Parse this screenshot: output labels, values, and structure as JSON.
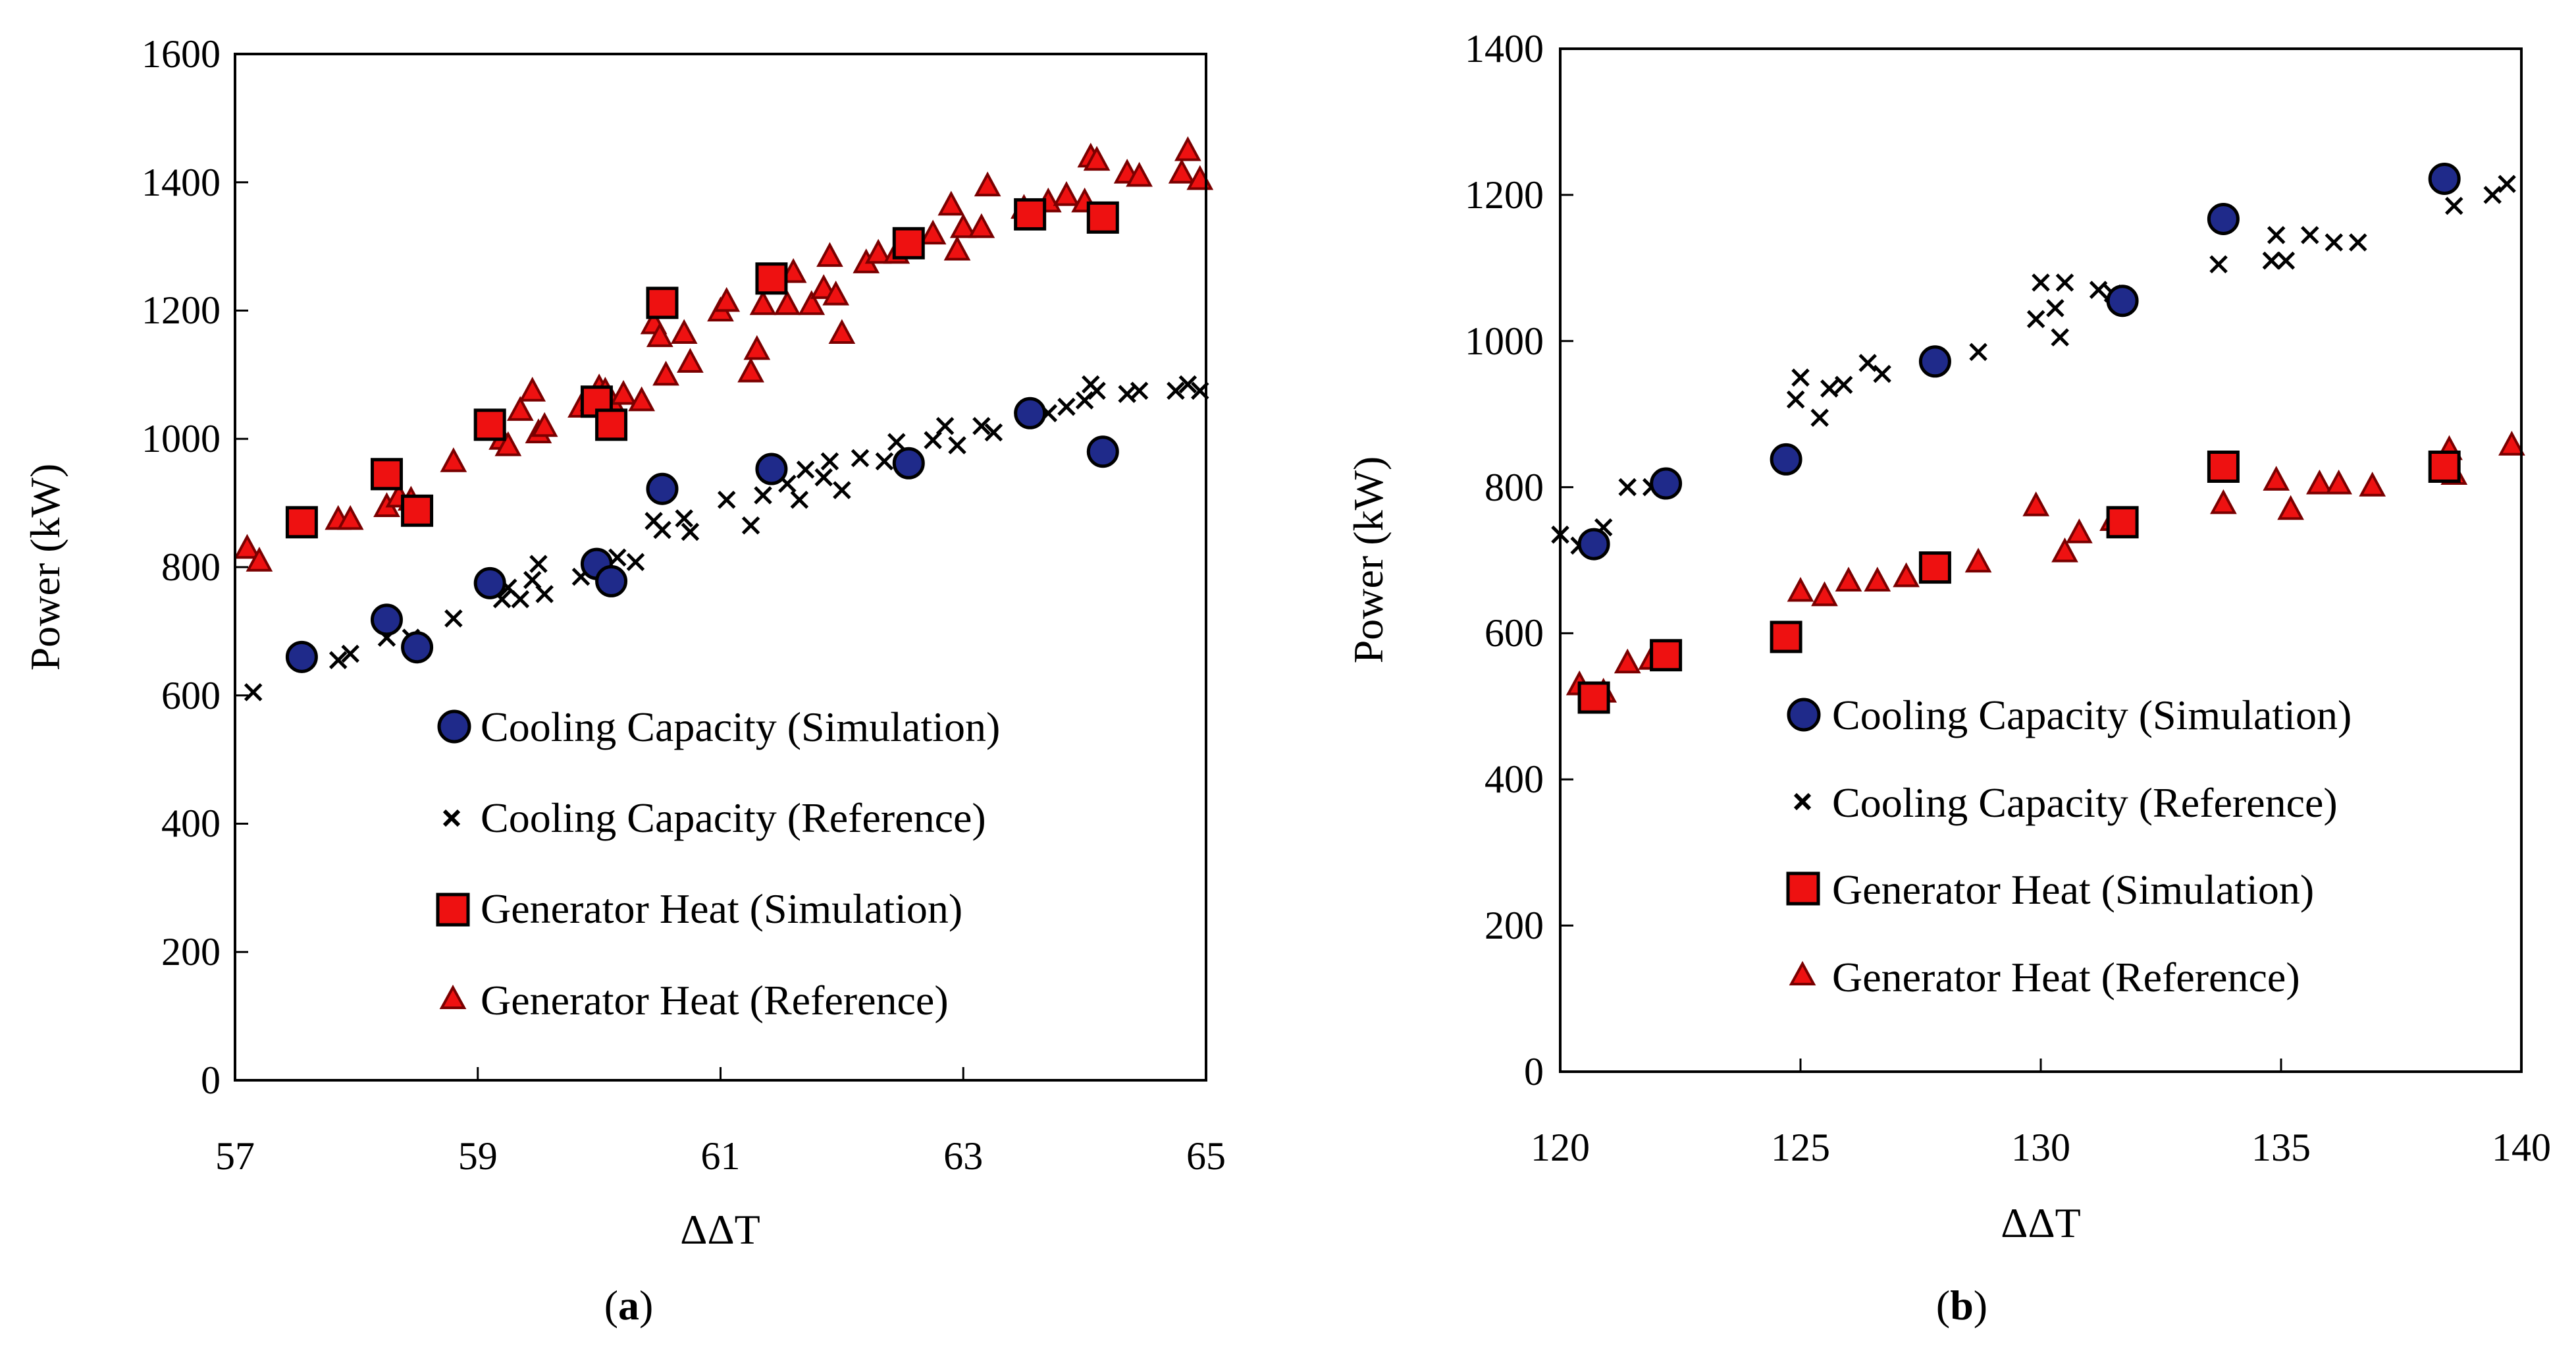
{
  "colors": {
    "cooling_sim_fill": "#1f2a8a",
    "cooling_sim_edge": "#000000",
    "cooling_ref": "#000000",
    "generator_sim_fill": "#ee1111",
    "generator_sim_edge": "#000000",
    "generator_ref_fill": "#ee1111",
    "generator_ref_edge": "#7a0000"
  },
  "chart_data": [
    {
      "type": "scatter",
      "panel_label": "a",
      "xlabel": "ΔΔT",
      "ylabel": "Power (kW)",
      "xlim": [
        57,
        65
      ],
      "ylim": [
        0,
        1600
      ],
      "xticks": [
        57,
        59,
        61,
        63,
        65
      ],
      "yticks": [
        0,
        200,
        400,
        600,
        800,
        1000,
        1200,
        1400,
        1600
      ],
      "grid": false,
      "legend_position": "bottom-right",
      "series": [
        {
          "name": "Cooling Capacity (Simulation)",
          "marker": "circle",
          "points": [
            [
              57.55,
              660
            ],
            [
              58.25,
              718
            ],
            [
              58.5,
              675
            ],
            [
              59.1,
              775
            ],
            [
              59.98,
              805
            ],
            [
              60.1,
              778
            ],
            [
              60.52,
              922
            ],
            [
              61.42,
              953
            ],
            [
              62.55,
              962
            ],
            [
              63.55,
              1040
            ],
            [
              64.15,
              980
            ]
          ]
        },
        {
          "name": "Cooling Capacity (Reference)",
          "marker": "x",
          "points": [
            [
              57.15,
              605
            ],
            [
              57.85,
              655
            ],
            [
              57.95,
              665
            ],
            [
              58.25,
              690
            ],
            [
              58.45,
              690
            ],
            [
              58.8,
              720
            ],
            [
              59.2,
              750
            ],
            [
              59.25,
              768
            ],
            [
              59.35,
              750
            ],
            [
              59.45,
              780
            ],
            [
              59.5,
              805
            ],
            [
              59.55,
              758
            ],
            [
              59.85,
              785
            ],
            [
              59.95,
              805
            ],
            [
              60.05,
              790
            ],
            [
              60.15,
              815
            ],
            [
              60.3,
              808
            ],
            [
              60.45,
              872
            ],
            [
              60.52,
              858
            ],
            [
              60.7,
              876
            ],
            [
              60.75,
              855
            ],
            [
              61.05,
              905
            ],
            [
              61.25,
              865
            ],
            [
              61.35,
              912
            ],
            [
              61.55,
              930
            ],
            [
              61.65,
              905
            ],
            [
              61.7,
              952
            ],
            [
              61.85,
              940
            ],
            [
              61.9,
              965
            ],
            [
              62.0,
              920
            ],
            [
              62.15,
              970
            ],
            [
              62.35,
              965
            ],
            [
              62.45,
              995
            ],
            [
              62.55,
              968
            ],
            [
              62.75,
              998
            ],
            [
              62.85,
              1020
            ],
            [
              62.95,
              990
            ],
            [
              63.15,
              1020
            ],
            [
              63.25,
              1010
            ],
            [
              63.55,
              1035
            ],
            [
              63.7,
              1040
            ],
            [
              63.85,
              1050
            ],
            [
              64.0,
              1060
            ],
            [
              64.05,
              1085
            ],
            [
              64.1,
              1075
            ],
            [
              64.35,
              1070
            ],
            [
              64.45,
              1075
            ],
            [
              64.75,
              1075
            ],
            [
              64.85,
              1085
            ],
            [
              64.95,
              1075
            ]
          ]
        },
        {
          "name": "Generator Heat (Simulation)",
          "marker": "square",
          "points": [
            [
              57.55,
              870
            ],
            [
              58.25,
              945
            ],
            [
              58.5,
              888
            ],
            [
              59.1,
              1022
            ],
            [
              59.98,
              1058
            ],
            [
              60.1,
              1022
            ],
            [
              60.52,
              1212
            ],
            [
              61.42,
              1250
            ],
            [
              62.55,
              1305
            ],
            [
              63.55,
              1350
            ],
            [
              64.15,
              1345
            ]
          ]
        },
        {
          "name": "Generator Heat (Reference)",
          "marker": "triangle",
          "points": [
            [
              57.1,
              830
            ],
            [
              57.2,
              810
            ],
            [
              57.85,
              875
            ],
            [
              57.95,
              875
            ],
            [
              58.25,
              895
            ],
            [
              58.35,
              910
            ],
            [
              58.45,
              905
            ],
            [
              58.8,
              965
            ],
            [
              59.2,
              1000
            ],
            [
              59.25,
              990
            ],
            [
              59.35,
              1045
            ],
            [
              59.45,
              1075
            ],
            [
              59.5,
              1010
            ],
            [
              59.55,
              1020
            ],
            [
              59.85,
              1050
            ],
            [
              59.95,
              1060
            ],
            [
              60.0,
              1080
            ],
            [
              60.05,
              1075
            ],
            [
              60.1,
              1060
            ],
            [
              60.2,
              1070
            ],
            [
              60.35,
              1060
            ],
            [
              60.45,
              1180
            ],
            [
              60.5,
              1160
            ],
            [
              60.55,
              1100
            ],
            [
              60.7,
              1165
            ],
            [
              60.75,
              1120
            ],
            [
              61.0,
              1200
            ],
            [
              61.05,
              1215
            ],
            [
              61.25,
              1105
            ],
            [
              61.3,
              1140
            ],
            [
              61.35,
              1210
            ],
            [
              61.55,
              1210
            ],
            [
              61.6,
              1260
            ],
            [
              61.75,
              1210
            ],
            [
              61.85,
              1235
            ],
            [
              61.9,
              1285
            ],
            [
              61.95,
              1225
            ],
            [
              62.0,
              1165
            ],
            [
              62.2,
              1275
            ],
            [
              62.3,
              1290
            ],
            [
              62.45,
              1290
            ],
            [
              62.55,
              1300
            ],
            [
              62.75,
              1320
            ],
            [
              62.9,
              1365
            ],
            [
              62.95,
              1295
            ],
            [
              63.0,
              1330
            ],
            [
              63.15,
              1330
            ],
            [
              63.2,
              1395
            ],
            [
              63.5,
              1360
            ],
            [
              63.7,
              1370
            ],
            [
              63.85,
              1380
            ],
            [
              64.0,
              1370
            ],
            [
              64.05,
              1440
            ],
            [
              64.1,
              1435
            ],
            [
              64.35,
              1415
            ],
            [
              64.45,
              1410
            ],
            [
              64.8,
              1415
            ],
            [
              64.85,
              1450
            ],
            [
              64.95,
              1405
            ]
          ]
        }
      ]
    },
    {
      "type": "scatter",
      "panel_label": "b",
      "xlabel": "ΔΔT",
      "ylabel": "Power (kW)",
      "xlim": [
        120,
        140
      ],
      "ylim": [
        0,
        1400
      ],
      "xticks": [
        120,
        125,
        130,
        135,
        140
      ],
      "yticks": [
        0,
        200,
        400,
        600,
        800,
        1000,
        1200,
        1400
      ],
      "grid": false,
      "legend_position": "bottom-right",
      "series": [
        {
          "name": "Cooling Capacity (Simulation)",
          "marker": "circle",
          "points": [
            [
              120.7,
              722
            ],
            [
              122.2,
              805
            ],
            [
              124.7,
              838
            ],
            [
              127.8,
              972
            ],
            [
              131.7,
              1055
            ],
            [
              133.8,
              1167
            ],
            [
              138.4,
              1222
            ]
          ]
        },
        {
          "name": "Cooling Capacity (Reference)",
          "marker": "x",
          "points": [
            [
              120.0,
              735
            ],
            [
              120.4,
              720
            ],
            [
              120.9,
              745
            ],
            [
              121.4,
              800
            ],
            [
              121.9,
              800
            ],
            [
              124.9,
              920
            ],
            [
              125.0,
              950
            ],
            [
              125.4,
              895
            ],
            [
              125.6,
              935
            ],
            [
              125.9,
              940
            ],
            [
              126.4,
              970
            ],
            [
              126.7,
              955
            ],
            [
              128.7,
              985
            ],
            [
              129.9,
              1030
            ],
            [
              130.0,
              1080
            ],
            [
              130.3,
              1045
            ],
            [
              130.4,
              1005
            ],
            [
              130.5,
              1080
            ],
            [
              131.2,
              1070
            ],
            [
              131.5,
              1065
            ],
            [
              133.7,
              1105
            ],
            [
              134.8,
              1110
            ],
            [
              134.9,
              1145
            ],
            [
              135.1,
              1110
            ],
            [
              135.6,
              1145
            ],
            [
              136.1,
              1135
            ],
            [
              136.6,
              1135
            ],
            [
              138.6,
              1185
            ],
            [
              139.4,
              1200
            ],
            [
              139.7,
              1215
            ]
          ]
        },
        {
          "name": "Generator Heat (Simulation)",
          "marker": "square",
          "points": [
            [
              120.7,
              512
            ],
            [
              122.2,
              570
            ],
            [
              124.7,
              595
            ],
            [
              127.8,
              690
            ],
            [
              131.7,
              752
            ],
            [
              133.8,
              828
            ],
            [
              138.4,
              828
            ]
          ]
        },
        {
          "name": "Generator Heat (Reference)",
          "marker": "triangle",
          "points": [
            [
              120.4,
              530
            ],
            [
              120.9,
              520
            ],
            [
              121.4,
              560
            ],
            [
              121.9,
              565
            ],
            [
              125.0,
              658
            ],
            [
              125.5,
              652
            ],
            [
              126.0,
              672
            ],
            [
              126.6,
              672
            ],
            [
              127.2,
              678
            ],
            [
              128.7,
              698
            ],
            [
              129.9,
              775
            ],
            [
              130.5,
              712
            ],
            [
              130.8,
              738
            ],
            [
              131.5,
              755
            ],
            [
              133.8,
              778
            ],
            [
              134.9,
              810
            ],
            [
              135.2,
              770
            ],
            [
              135.8,
              805
            ],
            [
              136.2,
              805
            ],
            [
              136.9,
              802
            ],
            [
              138.5,
              852
            ],
            [
              138.6,
              818
            ],
            [
              139.8,
              858
            ]
          ]
        }
      ]
    }
  ],
  "panel_a": {
    "tick_x": [
      "57",
      "59",
      "61",
      "63",
      "65"
    ],
    "tick_y": [
      "0",
      "200",
      "400",
      "600",
      "800",
      "1000",
      "1200",
      "1400",
      "1600"
    ],
    "xlabel": "ΔΔT",
    "ylabel": "Power (kW)",
    "caption_open": "(",
    "caption_letter": "a",
    "caption_close": ")",
    "legend": [
      "Cooling Capacity (Simulation)",
      "Cooling Capacity (Reference)",
      "Generator Heat (Simulation)",
      "Generator Heat (Reference)"
    ]
  },
  "panel_b": {
    "tick_x": [
      "120",
      "125",
      "130",
      "135",
      "140"
    ],
    "tick_y": [
      "0",
      "200",
      "400",
      "600",
      "800",
      "1000",
      "1200",
      "1400"
    ],
    "xlabel": "ΔΔT",
    "ylabel": "Power (kW)",
    "caption_open": "(",
    "caption_letter": "b",
    "caption_close": ")",
    "legend": [
      "Cooling Capacity (Simulation)",
      "Cooling Capacity (Reference)",
      "Generator Heat (Simulation)",
      "Generator Heat (Reference)"
    ]
  }
}
